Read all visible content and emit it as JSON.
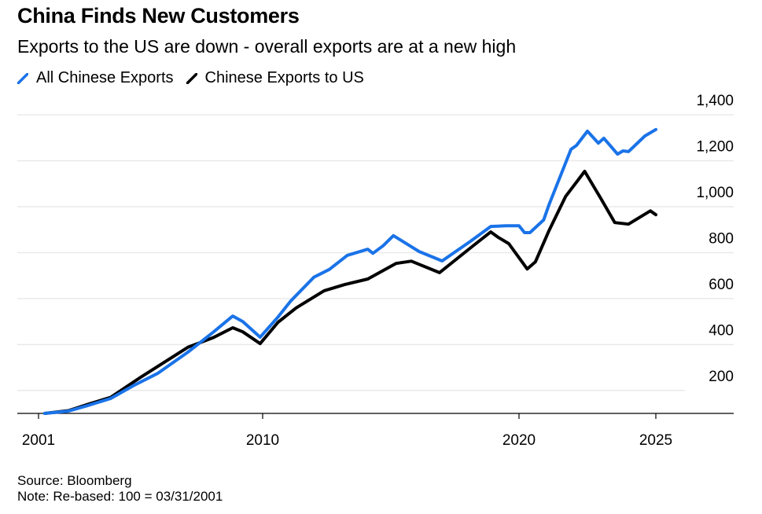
{
  "header": {
    "title": "China Finds New Customers",
    "subtitle": "Exports to the US are down - overall exports are at a new high"
  },
  "legend": [
    {
      "label": "All Chinese Exports",
      "color": "#1a73e8",
      "icon": "diagonal-line-icon"
    },
    {
      "label": "Chinese Exports to US",
      "color": "#000000",
      "icon": "diagonal-line-icon"
    }
  ],
  "footer": {
    "source": "Source: Bloomberg",
    "note": "Note: Re-based: 100 = 03/31/2001"
  },
  "chart_data": {
    "type": "line",
    "title": "China Finds New Customers",
    "subtitle": "Exports to the US are down - overall exports are at a new high",
    "xlabel": "",
    "ylabel": "",
    "x_ticks": [
      {
        "value": 2001,
        "label": "2001"
      },
      {
        "value": 2010,
        "label": "2010"
      },
      {
        "value": 2020,
        "label": "2020"
      },
      {
        "value": 2025,
        "label": "2025"
      }
    ],
    "y_ticks": [
      {
        "value": 200,
        "label": "200"
      },
      {
        "value": 400,
        "label": "400"
      },
      {
        "value": 600,
        "label": "600"
      },
      {
        "value": 800,
        "label": "800"
      },
      {
        "value": 1000,
        "label": "1,000"
      },
      {
        "value": 1200,
        "label": "1,200"
      },
      {
        "value": 1400,
        "label": "1,400"
      }
    ],
    "xlim": [
      2000.2,
      2028.0
    ],
    "ylim": [
      100,
      1450
    ],
    "grid": true,
    "y_axis_position": "right",
    "legend_position": "top-left",
    "series": [
      {
        "name": "All Chinese Exports",
        "color": "#1a73e8",
        "points": [
          [
            2001.25,
            100
          ],
          [
            2002.2,
            110
          ],
          [
            2003.0,
            135
          ],
          [
            2003.9,
            165
          ],
          [
            2004.8,
            220
          ],
          [
            2005.8,
            275
          ],
          [
            2007.0,
            367
          ],
          [
            2008.0,
            452
          ],
          [
            2008.8,
            524
          ],
          [
            2009.2,
            500
          ],
          [
            2009.9,
            432
          ],
          [
            2010.6,
            520
          ],
          [
            2011.1,
            590
          ],
          [
            2012.0,
            693
          ],
          [
            2012.6,
            727
          ],
          [
            2013.3,
            788
          ],
          [
            2014.1,
            815
          ],
          [
            2014.3,
            797
          ],
          [
            2014.7,
            830
          ],
          [
            2015.1,
            874
          ],
          [
            2016.1,
            805
          ],
          [
            2017.0,
            764
          ],
          [
            2018.1,
            849
          ],
          [
            2018.9,
            914
          ],
          [
            2019.5,
            917
          ],
          [
            2020.0,
            917
          ],
          [
            2020.2,
            887
          ],
          [
            2020.4,
            887
          ],
          [
            2020.9,
            942
          ],
          [
            2021.1,
            1010
          ],
          [
            2021.9,
            1250
          ],
          [
            2022.1,
            1267
          ],
          [
            2022.5,
            1329
          ],
          [
            2022.9,
            1277
          ],
          [
            2023.1,
            1298
          ],
          [
            2023.6,
            1229
          ],
          [
            2023.8,
            1243
          ],
          [
            2024.0,
            1240
          ],
          [
            2024.6,
            1308
          ],
          [
            2025.0,
            1336
          ]
        ]
      },
      {
        "name": "Chinese Exports to US",
        "color": "#000000",
        "points": [
          [
            2001.25,
            100
          ],
          [
            2002.2,
            112
          ],
          [
            2003.0,
            140
          ],
          [
            2003.9,
            170
          ],
          [
            2005.1,
            257
          ],
          [
            2007.0,
            388
          ],
          [
            2008.0,
            429
          ],
          [
            2008.8,
            473
          ],
          [
            2009.2,
            455
          ],
          [
            2009.9,
            404
          ],
          [
            2010.6,
            497
          ],
          [
            2011.3,
            559
          ],
          [
            2012.4,
            634
          ],
          [
            2013.2,
            661
          ],
          [
            2014.1,
            685
          ],
          [
            2015.2,
            753
          ],
          [
            2015.8,
            763
          ],
          [
            2016.9,
            713
          ],
          [
            2018.2,
            829
          ],
          [
            2018.9,
            890
          ],
          [
            2019.2,
            866
          ],
          [
            2019.6,
            839
          ],
          [
            2020.3,
            729
          ],
          [
            2020.6,
            760
          ],
          [
            2021.1,
            897
          ],
          [
            2021.7,
            1044
          ],
          [
            2022.4,
            1154
          ],
          [
            2023.0,
            1034
          ],
          [
            2023.5,
            931
          ],
          [
            2024.0,
            924
          ],
          [
            2024.8,
            982
          ],
          [
            2025.0,
            965
          ]
        ]
      }
    ]
  }
}
